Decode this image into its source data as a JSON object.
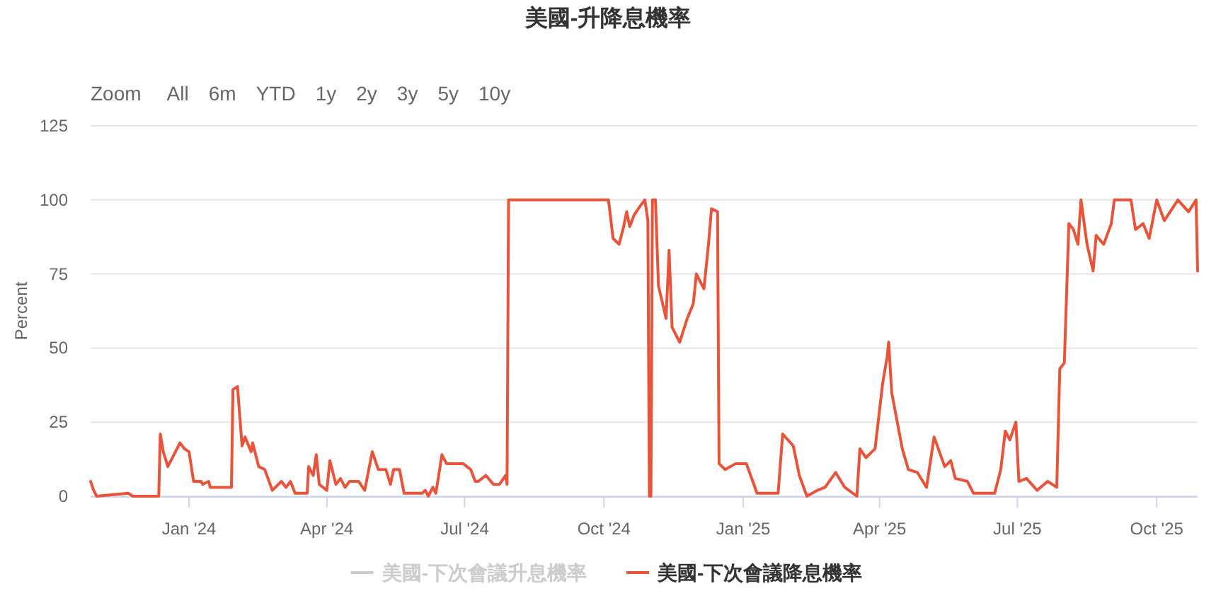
{
  "chart_data": {
    "type": "line",
    "title": "美國-升降息機率",
    "ylabel": "Percent",
    "annotations": [
      "Zoom",
      "All",
      "6m",
      "YTD",
      "1y",
      "2y",
      "3y",
      "5y",
      "10y"
    ],
    "xlim": [
      "2023-10-28",
      "2025-10-28"
    ],
    "xticks": [
      {
        "value": "2024-01-01",
        "label": "Jan '24"
      },
      {
        "value": "2024-04-01",
        "label": "Apr '24"
      },
      {
        "value": "2024-07-01",
        "label": "Jul '24"
      },
      {
        "value": "2024-10-01",
        "label": "Oct '24"
      },
      {
        "value": "2025-01-01",
        "label": "Jan '25"
      },
      {
        "value": "2025-04-01",
        "label": "Apr '25"
      },
      {
        "value": "2025-07-01",
        "label": "Jul '25"
      },
      {
        "value": "2025-10-01",
        "label": "Oct '25"
      }
    ],
    "ylim": [
      0,
      125
    ],
    "yticks": [
      0,
      25,
      50,
      75,
      100,
      125
    ],
    "grid": "y",
    "legend": "bottom",
    "marker": "none",
    "line_style": "solid",
    "series": [
      {
        "name": "美國-下次會議升息機率",
        "color": "#cccccc"
      },
      {
        "name": "美國-下次會議降息機率",
        "color": "#e8533a",
        "x": [
          "2023-10-28",
          "2023-10-30",
          "2023-11-01",
          "2023-11-22",
          "2023-11-25",
          "2023-12-12",
          "2023-12-13",
          "2023-12-15",
          "2023-12-18",
          "2023-12-22",
          "2023-12-26",
          "2023-12-29",
          "2024-01-01",
          "2024-01-04",
          "2024-01-09",
          "2024-01-10",
          "2024-01-14",
          "2024-01-15",
          "2024-01-26",
          "2024-01-29",
          "2024-01-30",
          "2024-02-02",
          "2024-02-05",
          "2024-02-07",
          "2024-02-11",
          "2024-02-12",
          "2024-02-16",
          "2024-02-20",
          "2024-02-25",
          "2024-03-02",
          "2024-03-05",
          "2024-03-08",
          "2024-03-11",
          "2024-03-19",
          "2024-03-20",
          "2024-03-23",
          "2024-03-25",
          "2024-03-27",
          "2024-04-01",
          "2024-04-03",
          "2024-04-07",
          "2024-04-10",
          "2024-04-13",
          "2024-04-16",
          "2024-04-22",
          "2024-04-26",
          "2024-05-01",
          "2024-05-05",
          "2024-05-10",
          "2024-05-13",
          "2024-05-15",
          "2024-05-19",
          "2024-05-22",
          "2024-06-03",
          "2024-06-05",
          "2024-06-07",
          "2024-06-10",
          "2024-06-12",
          "2024-06-16",
          "2024-06-19",
          "2024-06-30",
          "2024-07-05",
          "2024-07-08",
          "2024-07-10",
          "2024-07-15",
          "2024-07-20",
          "2024-07-24",
          "2024-07-28",
          "2024-07-29",
          "2024-07-30",
          "2024-10-04",
          "2024-10-07",
          "2024-10-11",
          "2024-10-14",
          "2024-10-16",
          "2024-10-18",
          "2024-10-21",
          "2024-10-25",
          "2024-10-28",
          "2024-10-30",
          "2024-10-31",
          "2024-11-01",
          "2024-11-02",
          "2024-11-04",
          "2024-11-06",
          "2024-11-11",
          "2024-11-13",
          "2024-11-15",
          "2024-11-20",
          "2024-11-25",
          "2024-11-29",
          "2024-12-01",
          "2024-12-06",
          "2024-12-09",
          "2024-12-11",
          "2024-12-15",
          "2024-12-16",
          "2024-12-20",
          "2024-12-27",
          "2025-01-03",
          "2025-01-08",
          "2025-01-10",
          "2025-01-24",
          "2025-01-27",
          "2025-02-03",
          "2025-02-07",
          "2025-02-12",
          "2025-02-19",
          "2025-02-24",
          "2025-03-03",
          "2025-03-09",
          "2025-03-17",
          "2025-03-19",
          "2025-03-23",
          "2025-03-29",
          "2025-04-03",
          "2025-04-06",
          "2025-04-07",
          "2025-04-09",
          "2025-04-16",
          "2025-04-20",
          "2025-04-26",
          "2025-05-02",
          "2025-05-07",
          "2025-05-14",
          "2025-05-18",
          "2025-05-21",
          "2025-05-29",
          "2025-06-02",
          "2025-06-09",
          "2025-06-16",
          "2025-06-20",
          "2025-06-23",
          "2025-06-26",
          "2025-06-30",
          "2025-07-02",
          "2025-07-07",
          "2025-07-14",
          "2025-07-21",
          "2025-07-27",
          "2025-07-29",
          "2025-08-01",
          "2025-08-04",
          "2025-08-07",
          "2025-08-10",
          "2025-08-12",
          "2025-08-16",
          "2025-08-20",
          "2025-08-22",
          "2025-08-27",
          "2025-09-01",
          "2025-09-03",
          "2025-09-14",
          "2025-09-17",
          "2025-09-22",
          "2025-09-26",
          "2025-10-01",
          "2025-10-06",
          "2025-10-15",
          "2025-10-22",
          "2025-10-27",
          "2025-10-28"
        ],
        "values": [
          5,
          2,
          0,
          1,
          0,
          0,
          21,
          15,
          10,
          14,
          18,
          16,
          15,
          5,
          5,
          4,
          5,
          3,
          3,
          3,
          36,
          37,
          17,
          20,
          15,
          18,
          10,
          9,
          2,
          5,
          3,
          5,
          1,
          1,
          10,
          7,
          14,
          4,
          2,
          12,
          4,
          6,
          3,
          5,
          5,
          2,
          15,
          9,
          9,
          4,
          9,
          9,
          1,
          1,
          2,
          0,
          3,
          1,
          14,
          11,
          11,
          9,
          5,
          5,
          7,
          4,
          4,
          7,
          4,
          100,
          100,
          87,
          85,
          91,
          96,
          91,
          95,
          98,
          100,
          93,
          0,
          0,
          100,
          100,
          71,
          60,
          83,
          57,
          52,
          60,
          65,
          75,
          70,
          85,
          97,
          96,
          11,
          9,
          11,
          11,
          4,
          1,
          1,
          21,
          17,
          7,
          0,
          2,
          3,
          8,
          3,
          0,
          16,
          13,
          16,
          38,
          47,
          52,
          35,
          16,
          9,
          8,
          3,
          20,
          10,
          12,
          6,
          5,
          1,
          1,
          1,
          9,
          22,
          19,
          25,
          5,
          6,
          2,
          5,
          3,
          43,
          45,
          92,
          90,
          85,
          100,
          85,
          76,
          88,
          85,
          92,
          100,
          100,
          90,
          92,
          87,
          100,
          93,
          100,
          96,
          100,
          76
        ]
      }
    ]
  }
}
